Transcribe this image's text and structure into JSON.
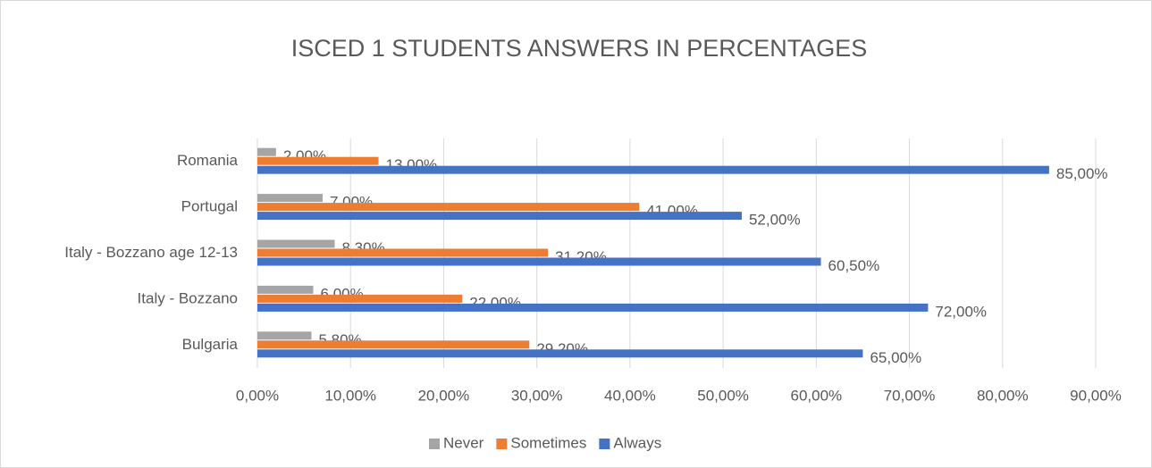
{
  "chart_data": {
    "type": "bar",
    "orientation": "horizontal",
    "title": "ISCED 1 STUDENTS ANSWERS IN PERCENTAGES",
    "categories": [
      "Bulgaria",
      "Italy - Bozzano",
      "Italy - Bozzano age 12-13",
      "Portugal",
      "Romania"
    ],
    "series": [
      {
        "name": "Never",
        "color": "#a5a5a5",
        "values": [
          5.8,
          6,
          8.3,
          7,
          2
        ],
        "value_labels": [
          "5,80%",
          "6,00%",
          "8,30%",
          "7,00%",
          "2,00%"
        ]
      },
      {
        "name": "Sometimes",
        "color": "#ed7d31",
        "values": [
          29.2,
          22,
          31.2,
          41,
          13
        ],
        "value_labels": [
          "29,20%",
          "22,00%",
          "31,20%",
          "41,00%",
          "13,00%"
        ]
      },
      {
        "name": "Always",
        "color": "#4472c4",
        "values": [
          65,
          72,
          60.5,
          52,
          85
        ],
        "value_labels": [
          "65,00%",
          "72,00%",
          "60,50%",
          "52,00%",
          "85,00%"
        ]
      }
    ],
    "xlim": [
      0,
      90
    ],
    "xticks": [
      {
        "value": 0,
        "label": "0,00%"
      },
      {
        "value": 10,
        "label": "10,00%"
      },
      {
        "value": 20,
        "label": "20,00%"
      },
      {
        "value": 30,
        "label": "30,00%"
      },
      {
        "value": 40,
        "label": "40,00%"
      },
      {
        "value": 50,
        "label": "50,00%"
      },
      {
        "value": 60,
        "label": "60,00%"
      },
      {
        "value": 70,
        "label": "70,00%"
      },
      {
        "value": 80,
        "label": "80,00%"
      },
      {
        "value": 90,
        "label": "90,00%"
      }
    ],
    "grid": true,
    "legend": "bottom"
  }
}
